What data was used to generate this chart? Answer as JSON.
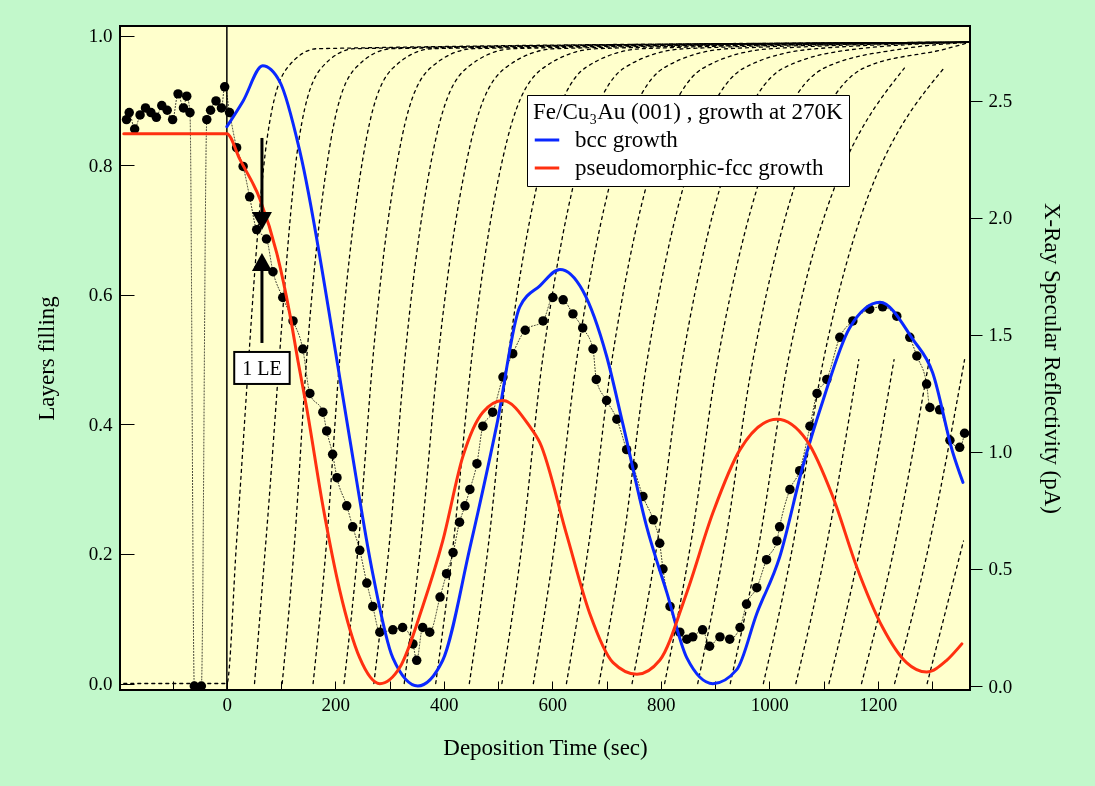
{
  "chart_data": {
    "type": "line",
    "xlabel": "Deposition Time (sec)",
    "ylabel": "Layers filling",
    "y2label": "X-Ray Specular Reflectivity (pA)",
    "legend_title": "Fe/Cu₃Au (001) , growth at 270K",
    "legend": "top right",
    "xlim": [
      -197,
      1370
    ],
    "ylim": [
      -0.01,
      1.015
    ],
    "y2lim": [
      -0.017,
      2.82
    ],
    "xticks": [
      {
        "value": -100,
        "label": null
      },
      0,
      {
        "value": 100,
        "label": null
      },
      200,
      {
        "value": 300,
        "label": null
      },
      400,
      {
        "value": 500,
        "label": null
      },
      600,
      {
        "value": 700,
        "label": null
      },
      800,
      {
        "value": 900,
        "label": null
      },
      1000,
      {
        "value": 1100,
        "label": null
      },
      1200,
      {
        "value": 1300,
        "label": null
      }
    ],
    "yticks": [
      {
        "value": 0,
        "label": "0.0"
      },
      0.2,
      0.4,
      0.6,
      0.8,
      {
        "value": 1,
        "label": "1.0"
      }
    ],
    "y2ticks": [
      {
        "value": 0,
        "label": "0.0"
      },
      0.5,
      {
        "value": 1,
        "label": "1.0"
      },
      1.5,
      {
        "value": 2,
        "label": "2.0"
      },
      2.5
    ],
    "ref_lines": [
      {
        "axis": "x",
        "value": 0,
        "color": "#000000"
      }
    ],
    "annotations": [
      "1 LE"
    ],
    "series": [
      {
        "axis": "y",
        "line_style": "dashed",
        "color": "#000000",
        "x": [
          -190,
          0,
          18,
          74,
          111,
          167,
          1370
        ],
        "values": [
          0,
          0,
          0.22,
          0.84,
          0.95,
          0.98,
          0.99
        ]
      },
      {
        "axis": "y",
        "line_style": "dashed",
        "color": "#000000",
        "x": [
          51,
          72,
          133,
          174,
          236,
          1370
        ],
        "values": [
          0,
          0.22,
          0.84,
          0.95,
          0.98,
          0.99
        ]
      },
      {
        "axis": "y",
        "line_style": "dashed",
        "color": "#000000",
        "x": [
          102,
          125,
          147,
          192,
          237,
          305,
          1370
        ],
        "values": [
          0,
          0.22,
          0.5,
          0.84,
          0.95,
          0.98,
          0.99
        ]
      },
      {
        "axis": "y",
        "line_style": "dashed",
        "color": "#000000",
        "x": [
          159,
          184,
          208,
          257,
          306,
          380,
          1370
        ],
        "values": [
          0,
          0.22,
          0.5,
          0.84,
          0.95,
          0.98,
          0.99
        ]
      },
      {
        "axis": "y",
        "line_style": "dashed",
        "color": "#000000",
        "x": [
          216,
          243,
          269,
          322,
          375,
          455,
          1370
        ],
        "values": [
          0,
          0.22,
          0.5,
          0.84,
          0.95,
          0.98,
          0.99
        ]
      },
      {
        "axis": "y",
        "line_style": "dashed",
        "color": "#000000",
        "x": [
          271,
          300,
          328,
          385,
          442,
          528,
          1370
        ],
        "values": [
          0,
          0.22,
          0.5,
          0.84,
          0.95,
          0.98,
          0.99
        ]
      },
      {
        "axis": "y",
        "line_style": "dashed",
        "color": "#000000",
        "x": [
          327,
          358,
          389,
          451,
          513,
          606,
          1370
        ],
        "values": [
          0,
          0.22,
          0.5,
          0.84,
          0.95,
          0.98,
          0.99
        ]
      },
      {
        "axis": "y",
        "line_style": "dashed",
        "color": "#000000",
        "x": [
          385,
          418,
          451,
          517,
          583,
          682,
          1370
        ],
        "values": [
          0,
          0.22,
          0.5,
          0.84,
          0.95,
          0.98,
          0.99
        ]
      },
      {
        "axis": "y",
        "line_style": "dashed",
        "color": "#000000",
        "x": [
          447,
          483,
          518,
          660,
          767,
          1370
        ],
        "values": [
          0,
          0.22,
          0.5,
          0.95,
          0.98,
          0.99
        ]
      },
      {
        "axis": "y",
        "line_style": "dashed",
        "color": "#000000",
        "x": [
          507,
          545,
          582,
          732,
          845,
          1370
        ],
        "values": [
          0,
          0.22,
          0.5,
          0.95,
          0.98,
          0.99
        ]
      },
      {
        "axis": "y",
        "line_style": "dashed",
        "color": "#000000",
        "x": [
          565,
          605,
          645,
          805,
          925,
          1370
        ],
        "values": [
          0,
          0.22,
          0.5,
          0.95,
          0.98,
          0.99
        ]
      },
      {
        "axis": "y",
        "line_style": "dashed",
        "color": "#000000",
        "x": [
          626,
          668,
          710,
          878,
          1004,
          1370
        ],
        "values": [
          0,
          0.22,
          0.5,
          0.95,
          0.98,
          0.99
        ]
      },
      {
        "axis": "y",
        "line_style": "dashed",
        "color": "#000000",
        "x": [
          686,
          731,
          775,
          953,
          1087,
          1370
        ],
        "values": [
          0,
          0.22,
          0.5,
          0.95,
          0.98,
          0.99
        ]
      },
      {
        "axis": "y",
        "line_style": "dashed",
        "color": "#000000",
        "x": [
          747,
          794,
          840,
          1026,
          1166,
          1370
        ],
        "values": [
          0,
          0.22,
          0.5,
          0.95,
          0.98,
          0.99
        ]
      },
      {
        "axis": "y",
        "line_style": "dashed",
        "color": "#000000",
        "x": [
          807,
          856,
          905,
          1101,
          1248,
          1370
        ],
        "values": [
          0,
          0.22,
          0.5,
          0.95,
          0.98,
          0.99
        ]
      },
      {
        "axis": "y",
        "line_style": "dashed",
        "color": "#000000",
        "x": [
          868,
          919,
          970,
          1174,
          1327,
          1370
        ],
        "values": [
          0,
          0.22,
          0.5,
          0.95,
          0.98,
          0.99
        ]
      },
      {
        "axis": "y",
        "line_style": "dashed",
        "color": "#000000",
        "x": [
          928,
          982,
          1035,
          1249
        ],
        "values": [
          0,
          0.22,
          0.5,
          0.95
        ]
      },
      {
        "axis": "y",
        "line_style": "dashed",
        "color": "#000000",
        "x": [
          989,
          1045,
          1100,
          1322
        ],
        "values": [
          0,
          0.22,
          0.5,
          0.95
        ]
      },
      {
        "axis": "y",
        "line_style": "dashed",
        "color": "#000000",
        "x": [
          1049,
          1107,
          1165
        ],
        "values": [
          0,
          0.22,
          0.5
        ]
      },
      {
        "axis": "y",
        "line_style": "dashed",
        "color": "#000000",
        "x": [
          1110,
          1170,
          1230
        ],
        "values": [
          0,
          0.22,
          0.5
        ]
      },
      {
        "axis": "y",
        "line_style": "dashed",
        "color": "#000000",
        "x": [
          1170,
          1233,
          1295
        ],
        "values": [
          0,
          0.22,
          0.5
        ]
      },
      {
        "axis": "y",
        "line_style": "dashed",
        "color": "#000000",
        "x": [
          1231,
          1296,
          1360
        ],
        "values": [
          0,
          0.22,
          0.5
        ]
      },
      {
        "axis": "y",
        "line_style": "dashed",
        "color": "#000000",
        "x": [
          1291,
          1358
        ],
        "values": [
          0,
          0.22
        ]
      },
      {
        "axis": "y2",
        "line_style": "dotted",
        "marker": "circle",
        "color": "#000000",
        "x": [
          -185,
          -180,
          -170,
          -160,
          -150,
          -140,
          -130,
          -120,
          -110,
          -100,
          -90,
          -80,
          -74,
          -68,
          -60,
          -47,
          -37,
          -30,
          -20,
          -10,
          -4,
          5,
          18,
          30,
          42,
          55,
          73,
          85,
          103,
          122,
          140,
          153,
          177,
          184,
          195,
          203,
          221,
          232,
          245,
          258,
          269,
          282,
          306,
          324,
          343,
          350,
          361,
          374,
          393,
          405,
          417,
          429,
          439,
          448,
          461,
          472,
          490,
          509,
          527,
          550,
          583,
          601,
          620,
          638,
          656,
          675,
          681,
          700,
          719,
          737,
          749,
          767,
          786,
          798,
          804,
          817,
          835,
          848,
          859,
          877,
          890,
          909,
          927,
          946,
          958,
          977,
          995,
          1014,
          1019,
          1038,
          1056,
          1075,
          1088,
          1106,
          1130,
          1154,
          1185,
          1209,
          1235,
          1259,
          1272,
          1290,
          1296,
          1314,
          1333,
          1351,
          1360
        ],
        "values": [
          2.42,
          2.45,
          2.38,
          2.44,
          2.47,
          2.45,
          2.43,
          2.48,
          2.46,
          2.42,
          2.53,
          2.47,
          2.52,
          2.45,
          0,
          0,
          2.42,
          2.46,
          2.5,
          2.47,
          2.56,
          2.45,
          2.3,
          2.22,
          2.09,
          1.95,
          1.91,
          1.77,
          1.66,
          1.56,
          1.44,
          1.25,
          1.17,
          1.09,
          0.99,
          0.89,
          0.77,
          0.68,
          0.58,
          0.44,
          0.34,
          0.23,
          0.24,
          0.25,
          0.18,
          0.11,
          0.25,
          0.23,
          0.38,
          0.48,
          0.57,
          0.7,
          0.77,
          0.84,
          0.95,
          1.11,
          1.17,
          1.32,
          1.42,
          1.52,
          1.56,
          1.66,
          1.65,
          1.59,
          1.53,
          1.44,
          1.31,
          1.22,
          1.14,
          1.01,
          0.94,
          0.81,
          0.71,
          0.61,
          0.5,
          0.34,
          0.23,
          0.2,
          0.21,
          0.24,
          0.17,
          0.21,
          0.2,
          0.25,
          0.35,
          0.42,
          0.54,
          0.62,
          0.68,
          0.84,
          0.92,
          1.11,
          1.25,
          1.31,
          1.49,
          1.56,
          1.61,
          1.62,
          1.58,
          1.49,
          1.41,
          1.29,
          1.19,
          1.18,
          1.05,
          1.02,
          1.08
        ]
      },
      {
        "axis": "y2",
        "name": "bcc growth",
        "line_style": "solid",
        "color": "#0a28ff",
        "x": [
          0,
          30,
          66,
          98,
          135,
          203,
          227,
          269,
          306,
          352,
          398,
          448,
          498,
          540,
          577,
          614,
          656,
          700,
          730,
          774,
          811,
          848,
          896,
          940,
          977,
          1019,
          1062,
          1099,
          1148,
          1204,
          1265,
          1301,
          1338,
          1357
        ],
        "values": [
          2.39,
          2.5,
          2.65,
          2.58,
          2.28,
          1.39,
          1.05,
          0.48,
          0.12,
          0,
          0.11,
          0.59,
          1.12,
          1.62,
          1.71,
          1.78,
          1.69,
          1.41,
          1.12,
          0.68,
          0.4,
          0.12,
          0.01,
          0.07,
          0.31,
          0.55,
          0.94,
          1.22,
          1.53,
          1.64,
          1.48,
          1.34,
          1.0,
          0.87
        ]
      },
      {
        "axis": "y2",
        "name": "pseudomorphic-fcc growth",
        "line_style": "solid",
        "color": "#ff3010",
        "x": [
          -190,
          0,
          24,
          61,
          92,
          116,
          131,
          147,
          177,
          208,
          245,
          282,
          319,
          361,
          398,
          435,
          472,
          509,
          558,
          577,
          626,
          669,
          712,
          756,
          798,
          848,
          896,
          946,
          1014,
          1069,
          1117,
          1161,
          1209,
          1253,
          1290,
          1327,
          1355
        ],
        "values": [
          2.36,
          2.36,
          2.25,
          2.08,
          1.85,
          1.59,
          1.39,
          1.19,
          0.77,
          0.41,
          0.12,
          0.01,
          0.08,
          0.34,
          0.62,
          0.98,
          1.17,
          1.22,
          1.11,
          1.04,
          0.65,
          0.31,
          0.1,
          0.05,
          0.11,
          0.4,
          0.74,
          1.01,
          1.14,
          1.05,
          0.81,
          0.51,
          0.25,
          0.1,
          0.06,
          0.11,
          0.18
        ]
      }
    ]
  }
}
